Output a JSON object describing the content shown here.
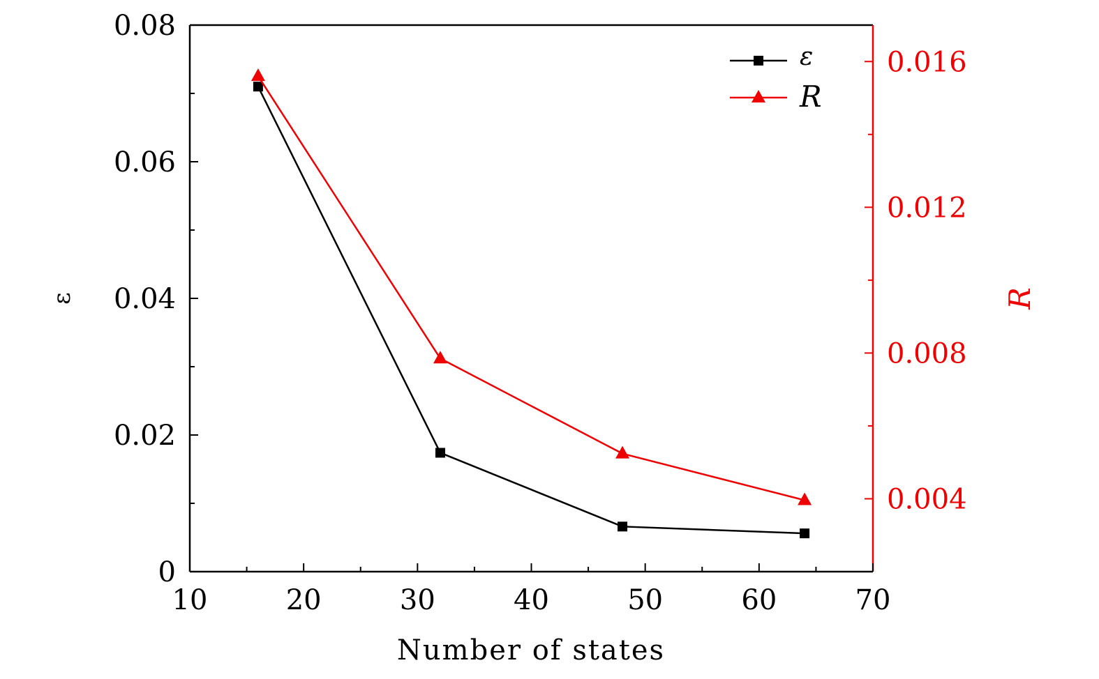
{
  "chart_data": {
    "type": "line",
    "xlabel": "Number of states",
    "ylabel": "ε",
    "y2label": "R",
    "xlim": [
      10,
      70
    ],
    "ylim": [
      0,
      0.08
    ],
    "y2lim": [
      0.002,
      0.017
    ],
    "xticks": [
      "10",
      "20",
      "30",
      "40",
      "50",
      "60",
      "70"
    ],
    "yticks": [
      "0",
      "0.02",
      "0.04",
      "0.06",
      "0.08"
    ],
    "y2ticks": [
      "0.004",
      "0.008",
      "0.012",
      "0.016"
    ],
    "grid": false,
    "legend_position": "top-right",
    "x": [
      16,
      32,
      48,
      64
    ],
    "series": [
      {
        "name": "ε",
        "axis": "left",
        "marker": "square",
        "color": "#000000",
        "values": [
          0.071,
          0.0174,
          0.0066,
          0.0056
        ]
      },
      {
        "name": "R",
        "axis": "right",
        "marker": "triangle",
        "color": "#ee0000",
        "values": [
          0.0156,
          0.00785,
          0.00524,
          0.00396
        ]
      }
    ]
  }
}
